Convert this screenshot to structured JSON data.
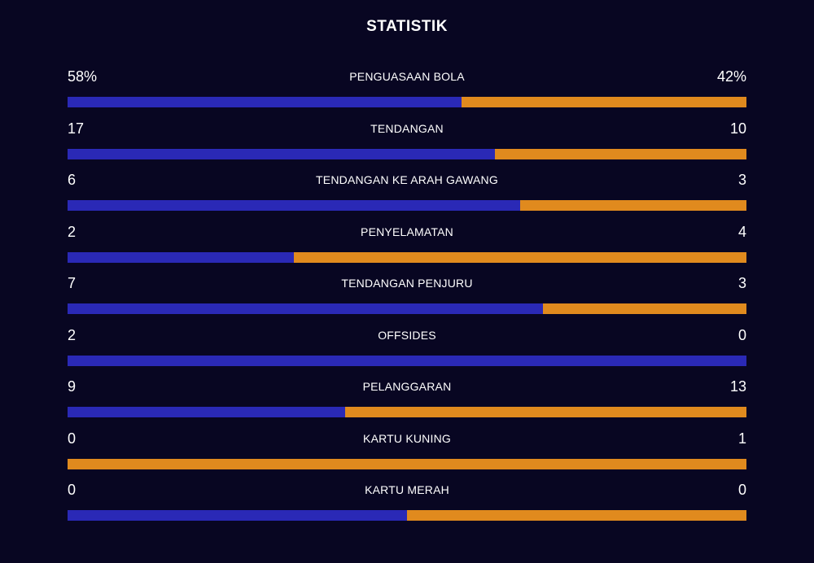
{
  "title": "STATISTIK",
  "colors": {
    "background": "#080622",
    "home": "#2a29b6",
    "away": "#e08a1e",
    "text": "#ffffff"
  },
  "stats": [
    {
      "label": "PENGUASAAN BOLA",
      "home": "58%",
      "away": "42%",
      "home_share": 0.58
    },
    {
      "label": "TENDANGAN",
      "home": "17",
      "away": "10",
      "home_share": 0.63
    },
    {
      "label": "TENDANGAN KE ARAH GAWANG",
      "home": "6",
      "away": "3",
      "home_share": 0.6667
    },
    {
      "label": "PENYELAMATAN",
      "home": "2",
      "away": "4",
      "home_share": 0.3333
    },
    {
      "label": "TENDANGAN PENJURU",
      "home": "7",
      "away": "3",
      "home_share": 0.7
    },
    {
      "label": "OFFSIDES",
      "home": "2",
      "away": "0",
      "home_share": 1.0
    },
    {
      "label": "PELANGGARAN",
      "home": "9",
      "away": "13",
      "home_share": 0.409
    },
    {
      "label": "KARTU KUNING",
      "home": "0",
      "away": "1",
      "home_share": 0.0
    },
    {
      "label": "KARTU MERAH",
      "home": "0",
      "away": "0",
      "home_share": 0.5
    }
  ]
}
